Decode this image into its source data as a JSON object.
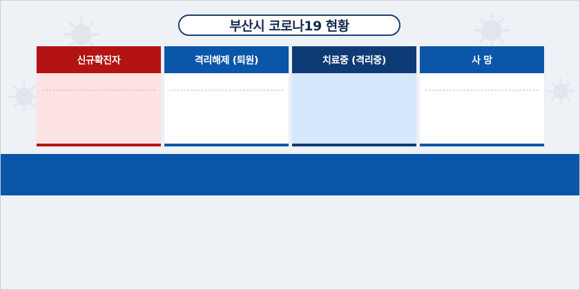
{
  "title": "부산시 코로나19 현황",
  "colors": {
    "background": "#eef1f6",
    "title_border": "#1b3e73",
    "band": "#0a55a7"
  },
  "panels": [
    {
      "label": "신규확진자",
      "head_color": "#b31313",
      "body_color": "#fde3e3",
      "bar_color": "#b31313"
    },
    {
      "label": "격리해제 (퇴원)",
      "head_color": "#0b56a8",
      "body_color": "#ffffff",
      "bar_color": "#0b56a8"
    },
    {
      "label": "치료중 (격리중)",
      "head_color": "#0e3a75",
      "body_color": "#d4e7fb",
      "bar_color": "#0e3a75"
    },
    {
      "label": "사 망",
      "head_color": "#0b56a8",
      "body_color": "#ffffff",
      "bar_color": "#0b56a8"
    }
  ],
  "icons": {
    "decoration": "virus-icon"
  }
}
